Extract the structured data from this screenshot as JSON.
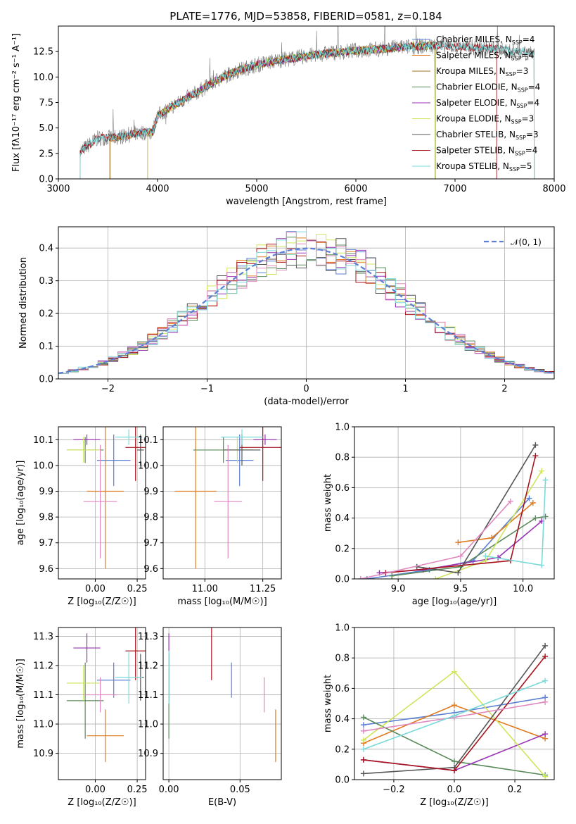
{
  "figure": {
    "title": "PLATE=1776, MJD=53858, FIBERID=0581, z=0.184",
    "colors": {
      "blue": "#5b7fd3",
      "orange": "#e07b20",
      "green": "#5a8a5a",
      "purple": "#9932b5",
      "yellow": "#cde65b",
      "dark": "#555555",
      "red": "#a8141e",
      "pink": "#e088c0",
      "cyan": "#7ad9d9",
      "grid": "#b0b0b0"
    }
  },
  "chart_data": [
    {
      "id": "spectrum",
      "type": "line",
      "title": "PLATE=1776, MJD=53858, FIBERID=0581, z=0.184",
      "xlabel": "wavelength [Angstrom, rest frame]",
      "ylabel": "Flux [fλ10⁻¹⁷ erg cm⁻² s⁻¹ A⁻¹]",
      "xlim": [
        3000,
        8000
      ],
      "ylim": [
        0,
        15
      ],
      "xticks": [
        "3000",
        "4000",
        "5000",
        "6000",
        "7000",
        "8000"
      ],
      "yticks": [
        "0.0",
        "2.5",
        "5.0",
        "7.5",
        "10.0",
        "12.5"
      ],
      "xtick_values": [
        3000,
        4000,
        5000,
        6000,
        7000,
        8000
      ],
      "ytick_values": [
        0,
        2.5,
        5,
        7.5,
        10,
        12.5
      ],
      "grid": false,
      "legend_position": "top-right",
      "continuum": {
        "x": [
          3220,
          3400,
          3600,
          3800,
          3950,
          4000,
          4200,
          4400,
          4600,
          4800,
          5000,
          5200,
          5400,
          5600,
          5800,
          6000,
          6200,
          6400,
          6600,
          6800,
          7000,
          7200,
          7400,
          7600,
          7800
        ],
        "y": [
          2.7,
          4.0,
          4.1,
          4.5,
          4.6,
          6.2,
          7.4,
          8.5,
          9.7,
          10.6,
          11.2,
          11.6,
          11.9,
          12.2,
          12.4,
          12.6,
          12.7,
          12.9,
          13.0,
          13.1,
          13.0,
          12.9,
          12.8,
          12.5,
          12.4
        ]
      },
      "series": [
        {
          "name": "Chabrier MILES, N_SSP=4",
          "label_main": "Chabrier MILES, N",
          "n": "4",
          "color": "#5b7fd3",
          "x_start": 3520,
          "x_end": 6800
        },
        {
          "name": "Salpeter MILES, N_SSP=4",
          "label_main": "Salpeter MILES, N",
          "n": "4",
          "color": "#e07b20",
          "x_start": 3520,
          "x_end": 6800
        },
        {
          "name": "Kroupa MILES, N_SSP=3",
          "label_main": "Kroupa MILES, N",
          "n": "3",
          "color": "#a07020",
          "x_start": 3520,
          "x_end": 6800
        },
        {
          "name": "Chabrier ELODIE, N_SSP=4",
          "label_main": "Chabrier ELODIE, N",
          "n": "4",
          "color": "#5a8a5a",
          "x_start": 3900,
          "x_end": 6800
        },
        {
          "name": "Salpeter ELODIE, N_SSP=4",
          "label_main": "Salpeter ELODIE, N",
          "n": "4",
          "color": "#9932b5",
          "x_start": 3900,
          "x_end": 6800
        },
        {
          "name": "Kroupa ELODIE, N_SSP=3",
          "label_main": "Kroupa ELODIE, N",
          "n": "3",
          "color": "#cde65b",
          "x_start": 3900,
          "x_end": 6800
        },
        {
          "name": "Chabrier STELIB, N_SSP=3",
          "label_main": "Chabrier STELIB, N",
          "n": "3",
          "color": "#555555",
          "x_start": 3220,
          "x_end": 7800
        },
        {
          "name": "Salpeter STELIB, N_SSP=4",
          "label_main": "Salpeter STELIB, N",
          "n": "4",
          "color": "#a8141e",
          "x_start": 3220,
          "x_end": 7420
        },
        {
          "name": "Kroupa STELIB, N_SSP=5",
          "label_main": "Kroupa STELIB, N",
          "n": "5",
          "color": "#7ad9d9",
          "x_start": 3220,
          "x_end": 7800
        }
      ]
    },
    {
      "id": "residuals",
      "type": "histogram",
      "xlabel": "(data-model)/error",
      "ylabel": "Normed distribution",
      "xlim": [
        -2.5,
        2.5
      ],
      "ylim": [
        0,
        0.465
      ],
      "xticks": [
        "−2",
        "−1",
        "0",
        "1",
        "2"
      ],
      "xtick_values": [
        -2,
        -1,
        0,
        1,
        2
      ],
      "yticks": [
        "0.0",
        "0.1",
        "0.2",
        "0.3",
        "0.4"
      ],
      "ytick_values": [
        0,
        0.1,
        0.2,
        0.3,
        0.4
      ],
      "grid": true,
      "legend": "𝒩(0, 1)",
      "legend_position": "top-right",
      "bins": [
        -2.5,
        -2.4,
        -2.3,
        -2.2,
        -2.1,
        -2.0,
        -1.9,
        -1.8,
        -1.7,
        -1.6,
        -1.5,
        -1.4,
        -1.3,
        -1.2,
        -1.1,
        -1.0,
        -0.9,
        -0.8,
        -0.7,
        -0.6,
        -0.5,
        -0.4,
        -0.3,
        -0.2,
        -0.1,
        0.0,
        0.1,
        0.2,
        0.3,
        0.4,
        0.5,
        0.6,
        0.7,
        0.8,
        0.9,
        1.0,
        1.1,
        1.2,
        1.3,
        1.4,
        1.5,
        1.6,
        1.7,
        1.8,
        1.9,
        2.0,
        2.1,
        2.2,
        2.3,
        2.4,
        2.5
      ],
      "normal_curve": {
        "mean": 0,
        "std": 1
      }
    },
    {
      "id": "age-vs-Z",
      "type": "errorbar",
      "xlabel": "Z [log₁₀(Z/Z☉)]",
      "ylabel": "age  [log₁₀(age/yr)]",
      "xlim": [
        -0.22,
        0.3
      ],
      "ylim": [
        9.56,
        10.15
      ],
      "xticks": [
        "0.00",
        "0.25"
      ],
      "xtick_values": [
        0.0,
        0.25
      ],
      "yticks": [
        "9.6",
        "9.7",
        "9.8",
        "9.9",
        "10.0",
        "10.1"
      ],
      "ytick_values": [
        9.6,
        9.7,
        9.8,
        9.9,
        10.0,
        10.1
      ],
      "grid": true
    },
    {
      "id": "age-vs-mass",
      "type": "errorbar",
      "xlabel": "mass [log₁₀(M/M☉)]",
      "ylabel": "",
      "xlim": [
        10.82,
        11.33
      ],
      "ylim": [
        9.56,
        10.15
      ],
      "xticks": [
        "11.00",
        "11.25"
      ],
      "xtick_values": [
        11.0,
        11.25
      ],
      "yticks": [
        "9.6",
        "9.7",
        "9.8",
        "9.9",
        "10.0",
        "10.1"
      ],
      "ytick_values": [
        9.6,
        9.7,
        9.8,
        9.9,
        10.0,
        10.1
      ],
      "grid": true
    },
    {
      "id": "mass-weight-vs-age",
      "type": "line",
      "xlabel": "age  [log₁₀(age/yr)]",
      "ylabel": "mass weight",
      "xlim": [
        8.65,
        10.25
      ],
      "ylim": [
        0,
        1.0
      ],
      "xticks": [
        "9.0",
        "9.5",
        "10.0"
      ],
      "xtick_values": [
        9.0,
        9.5,
        10.0
      ],
      "yticks": [
        "0.0",
        "0.2",
        "0.4",
        "0.6",
        "0.8",
        "1.0"
      ],
      "ytick_values": [
        0,
        0.2,
        0.4,
        0.6,
        0.8,
        1.0
      ],
      "grid": true
    },
    {
      "id": "mass-vs-Z",
      "type": "errorbar",
      "xlabel": "Z [log₁₀(Z/Z☉)]",
      "ylabel": "mass [log₁₀(M/M☉)]",
      "xlim": [
        -0.22,
        0.3
      ],
      "ylim": [
        10.81,
        11.33
      ],
      "xticks": [
        "0.00",
        "0.25"
      ],
      "xtick_values": [
        0.0,
        0.25
      ],
      "yticks": [
        "10.9",
        "11.0",
        "11.1",
        "11.2",
        "11.3"
      ],
      "ytick_values": [
        10.9,
        11.0,
        11.1,
        11.2,
        11.3
      ],
      "grid": true
    },
    {
      "id": "mass-vs-EBV",
      "type": "errorbar",
      "xlabel": "E(B-V)",
      "ylabel": "",
      "xlim": [
        -0.004,
        0.079
      ],
      "ylim": [
        10.81,
        11.33
      ],
      "xticks": [
        "0.00",
        "0.05"
      ],
      "xtick_values": [
        0.0,
        0.05
      ],
      "yticks": [
        "10.9",
        "11.0",
        "11.1",
        "11.2",
        "11.3"
      ],
      "ytick_values": [
        10.9,
        11.0,
        11.1,
        11.2,
        11.3
      ],
      "grid": true
    },
    {
      "id": "mass-weight-vs-Z",
      "type": "line",
      "xlabel": "Z [log₁₀(Z/Z☉)]",
      "ylabel": "mass weight",
      "xlim": [
        -0.33,
        0.33
      ],
      "ylim": [
        0,
        1.0
      ],
      "xticks": [
        "−0.2",
        "0.0",
        "0.2"
      ],
      "xtick_values": [
        -0.2,
        0.0,
        0.2
      ],
      "yticks": [
        "0.0",
        "0.2",
        "0.4",
        "0.6",
        "0.8",
        "1.0"
      ],
      "ytick_values": [
        0,
        0.2,
        0.4,
        0.6,
        0.8,
        1.0
      ],
      "grid": true
    }
  ],
  "fits": [
    {
      "color": "#5b7fd3",
      "Z": 0.11,
      "Zerr": 0.1,
      "age": 10.02,
      "ageErr": 0.1,
      "mass": 11.15,
      "massErr": 0.06,
      "ebv": 0.044,
      "ebvErr": 0.0,
      "ages": [
        8.75,
        9.25,
        9.6,
        10.05
      ],
      "w_age": [
        0.0,
        0.06,
        0.12,
        0.53
      ],
      "Zs": [
        -0.3,
        0.0,
        0.3
      ],
      "w_Z": [
        0.36,
        0.44,
        0.54
      ]
    },
    {
      "color": "#e07b20",
      "Z": 0.06,
      "Zerr": 0.11,
      "age": 9.9,
      "ageErr": 0.3,
      "mass": 10.96,
      "massErr": 0.09,
      "ebv": 0.075,
      "ebvErr": 0.0,
      "ages": [
        9.48,
        9.75,
        10.08
      ],
      "w_age": [
        0.24,
        0.27,
        0.5
      ],
      "Zs": [
        -0.3,
        0.0,
        0.3
      ],
      "w_Z": [
        0.24,
        0.49,
        0.27
      ]
    },
    {
      "color": "#5a8a5a",
      "Z": -0.06,
      "Zerr": 0.11,
      "age": 10.06,
      "ageErr": 0.05,
      "mass": 11.08,
      "massErr": 0.13,
      "ebv": 0.0,
      "ebvErr": 0.0,
      "ages": [
        8.95,
        9.5,
        10.1,
        10.18
      ],
      "w_age": [
        0.02,
        0.08,
        0.4,
        0.41
      ],
      "Zs": [
        -0.3,
        0.0,
        0.3
      ],
      "w_Z": [
        0.41,
        0.12,
        0.03
      ]
    },
    {
      "color": "#9932b5",
      "Z": -0.05,
      "Zerr": 0.08,
      "age": 10.1,
      "ageErr": 0.02,
      "mass": 11.26,
      "massErr": 0.05,
      "ebv": 0.0,
      "ebvErr": 0.0,
      "ages": [
        8.85,
        9.2,
        9.8,
        10.15
      ],
      "w_age": [
        0.04,
        0.06,
        0.14,
        0.38
      ],
      "Zs": [
        -0.3,
        0.0,
        0.3
      ],
      "w_Z": [
        0.13,
        0.06,
        0.3
      ]
    },
    {
      "color": "#cde65b",
      "Z": -0.07,
      "Zerr": 0.1,
      "age": 10.06,
      "ageErr": 0.05,
      "mass": 11.14,
      "massErr": 0.06,
      "ebv": 0.0,
      "ebvErr": 0.0,
      "ages": [
        9.3,
        9.7,
        10.15
      ],
      "w_age": [
        0.0,
        0.12,
        0.71
      ],
      "Zs": [
        -0.3,
        0.0,
        0.3
      ],
      "w_Z": [
        0.26,
        0.71,
        0.02
      ]
    },
    {
      "color": "#555555",
      "Z": 0.27,
      "Zerr": 0.02,
      "age": 10.06,
      "ageErr": 0.06,
      "mass": 11.16,
      "massErr": 0.08,
      "ebv": 0.0,
      "ebvErr": 0.0,
      "ages": [
        9.15,
        9.48,
        10.1
      ],
      "w_age": [
        0.08,
        0.04,
        0.88
      ],
      "Zs": [
        -0.3,
        0.0,
        0.3
      ],
      "w_Z": [
        0.04,
        0.08,
        0.88
      ]
    },
    {
      "color": "#a8141e",
      "Z": 0.24,
      "Zerr": 0.06,
      "age": 10.07,
      "ageErr": 0.13,
      "mass": 11.25,
      "massErr": 0.1,
      "ebv": 0.03,
      "ebvErr": 0.0,
      "ages": [
        8.9,
        9.9,
        10.1
      ],
      "w_age": [
        0.04,
        0.12,
        0.81
      ],
      "Zs": [
        -0.3,
        0.0,
        0.3
      ],
      "w_Z": [
        0.13,
        0.06,
        0.81
      ]
    },
    {
      "color": "#e088c0",
      "Z": 0.03,
      "Zerr": 0.1,
      "age": 9.86,
      "ageErr": 0.22,
      "mass": 11.1,
      "massErr": 0.06,
      "ebv": 0.067,
      "ebvErr": 0.0,
      "ages": [
        8.7,
        9.5,
        9.9
      ],
      "w_age": [
        0.0,
        0.15,
        0.51
      ],
      "Zs": [
        -0.3,
        0.0,
        0.3
      ],
      "w_Z": [
        0.32,
        0.41,
        0.51
      ]
    },
    {
      "color": "#7ad9d9",
      "Z": 0.2,
      "Zerr": 0.08,
      "age": 10.11,
      "ageErr": 0.03,
      "mass": 11.16,
      "massErr": 0.09,
      "ebv": 0.0,
      "ebvErr": 0.0,
      "ages": [
        9.7,
        10.15,
        10.18
      ],
      "w_age": [
        0.15,
        0.09,
        0.65
      ],
      "Zs": [
        -0.3,
        0.0,
        0.3
      ],
      "w_Z": [
        0.2,
        0.42,
        0.65
      ]
    }
  ]
}
